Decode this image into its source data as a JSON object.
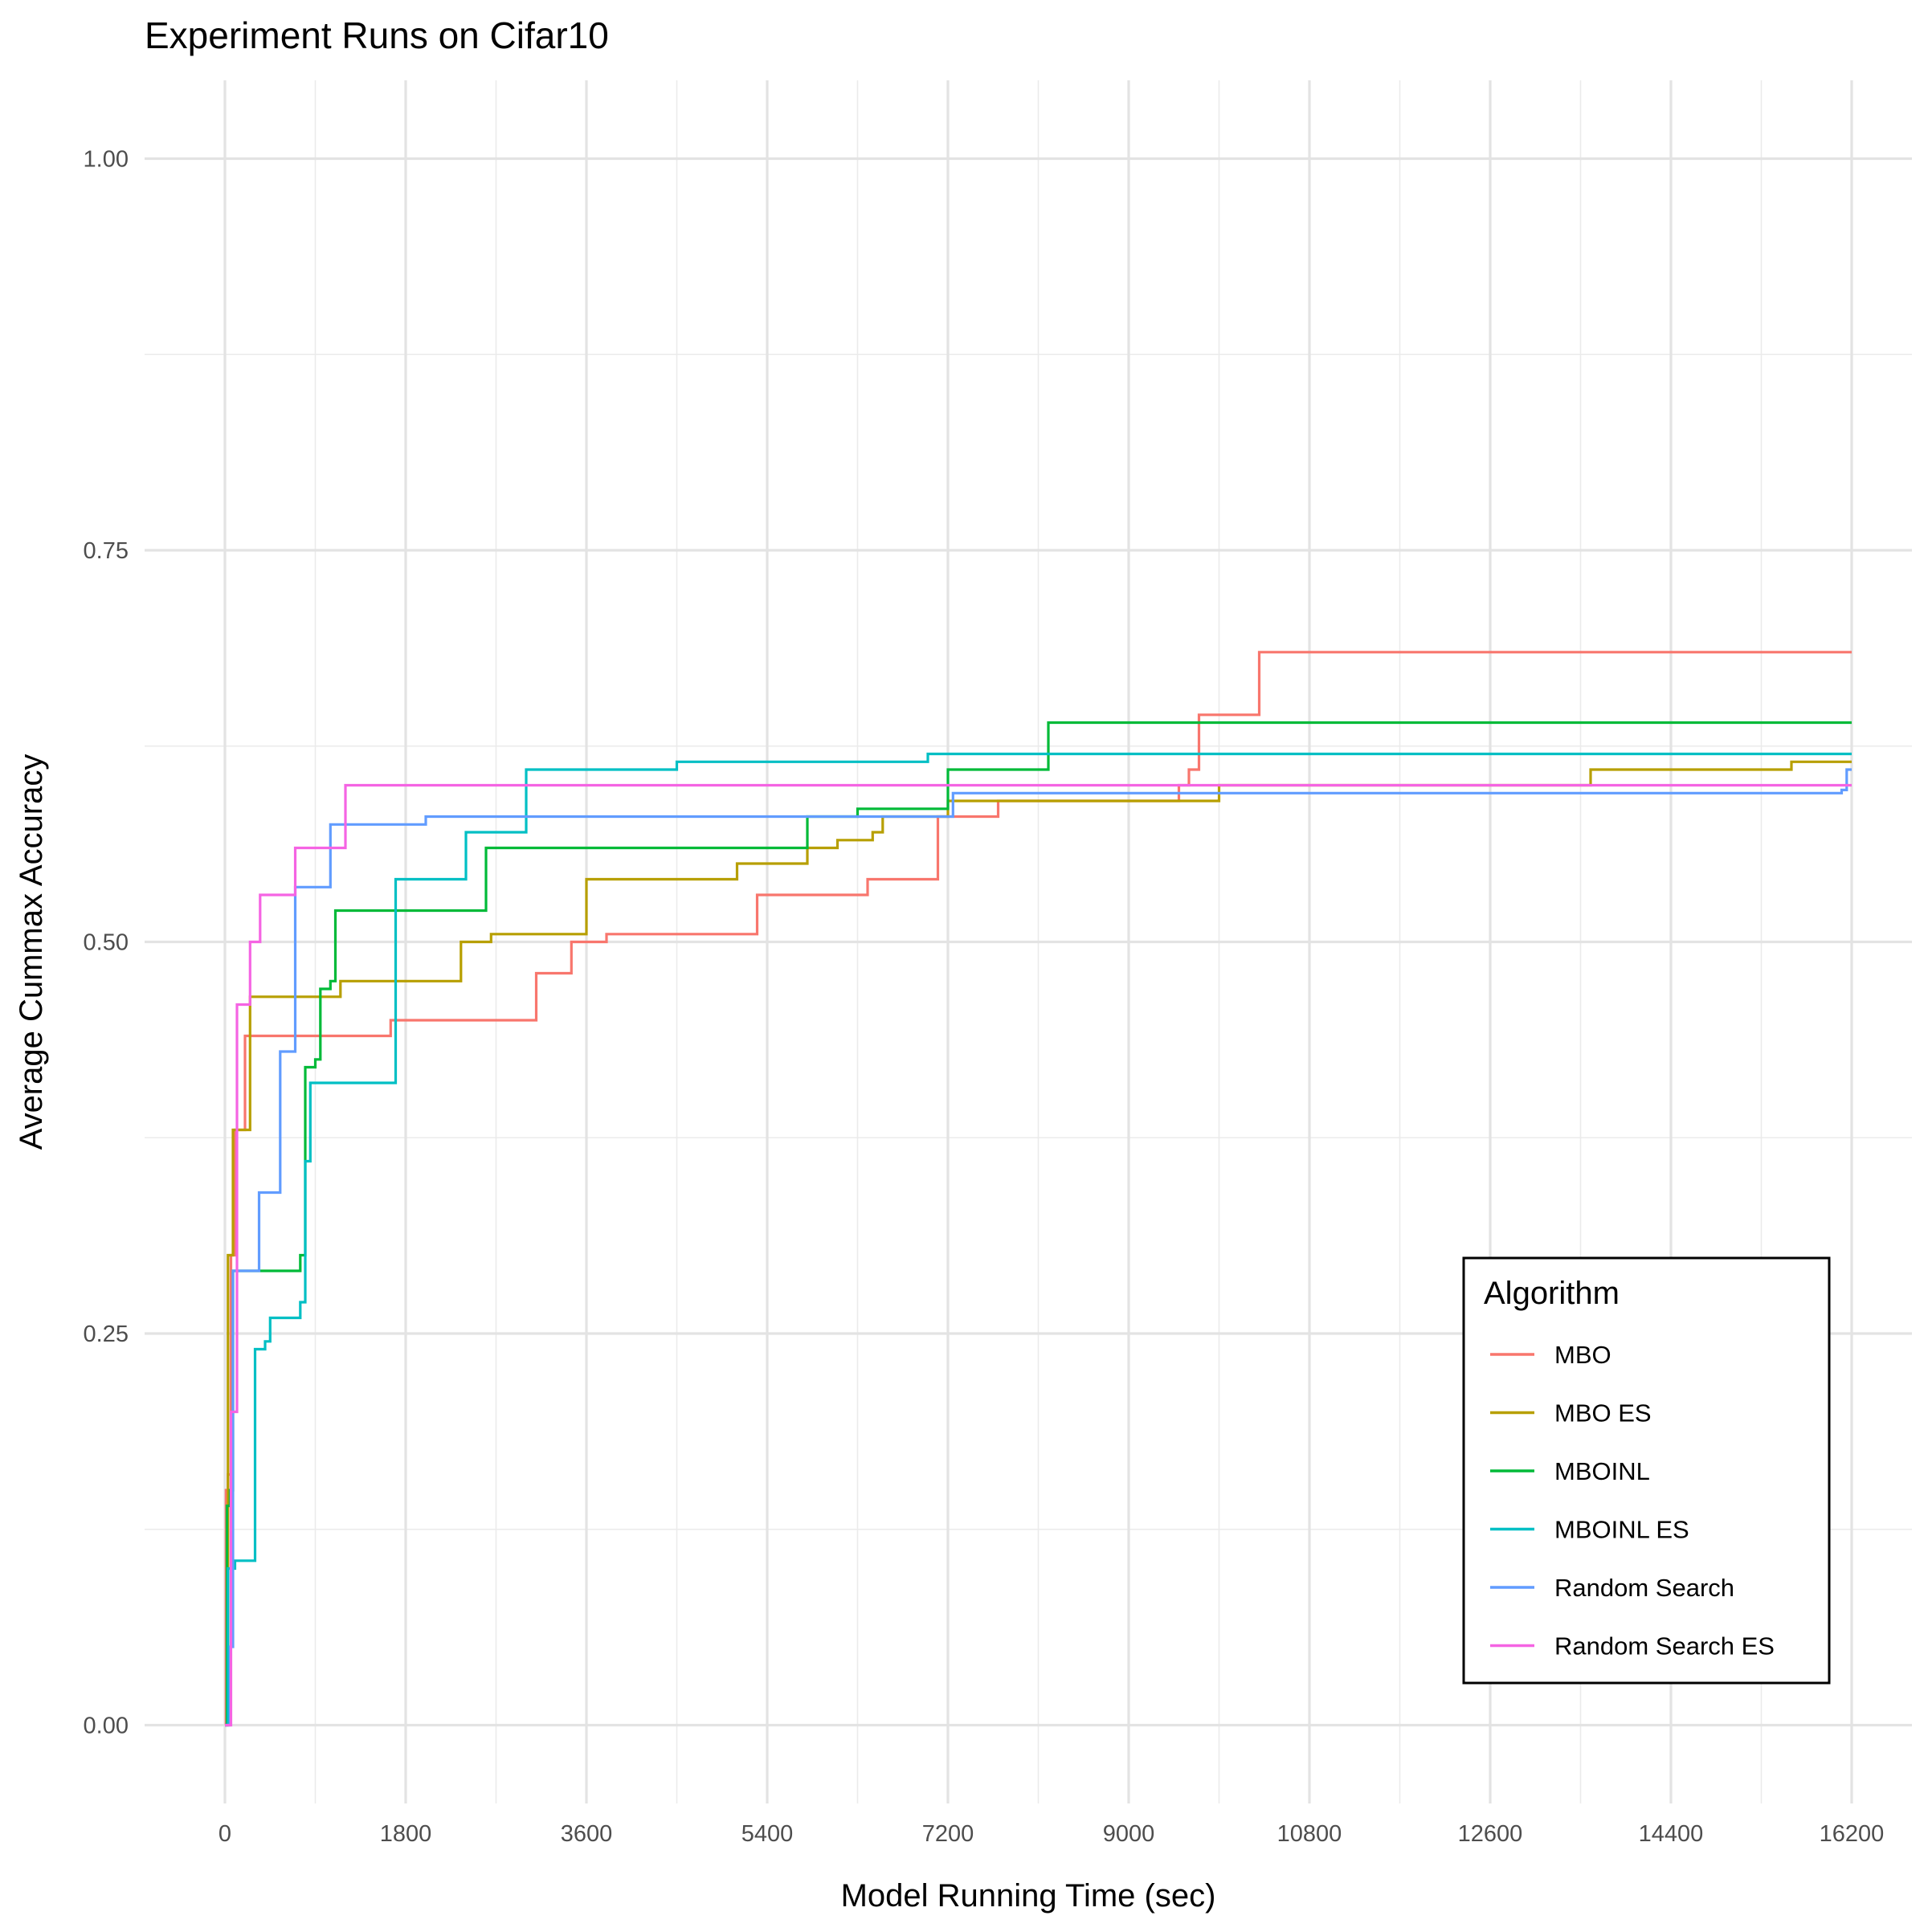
{
  "chart_data": {
    "type": "line",
    "title": "Experiment Runs on Cifar10",
    "xlabel": "Model Running Time (sec)",
    "ylabel": "Average Cummax Accuracy",
    "xlim": [
      -800,
      16800
    ],
    "ylim": [
      -0.05,
      1.05
    ],
    "x_ticks": [
      0,
      1800,
      3600,
      5400,
      7200,
      9000,
      10800,
      12600,
      14400,
      16200
    ],
    "x_tick_labels": [
      "0",
      "1800",
      "3600",
      "5400",
      "7200",
      "9000",
      "10800",
      "12600",
      "14400",
      "16200"
    ],
    "y_ticks": [
      0,
      0.25,
      0.5,
      0.75,
      1
    ],
    "y_tick_labels": [
      "0.00",
      "0.25",
      "0.50",
      "0.75",
      "1.00"
    ],
    "grid": true,
    "legend": {
      "title": "Algorithm",
      "position": "bottom-right"
    },
    "series": [
      {
        "name": "MBO",
        "color": "#F8766D",
        "points": [
          [
            0,
            0
          ],
          [
            10,
            0.15
          ],
          [
            30,
            0.16
          ],
          [
            60,
            0.3
          ],
          [
            100,
            0.38
          ],
          [
            200,
            0.44
          ],
          [
            1650,
            0.45
          ],
          [
            3100,
            0.48
          ],
          [
            3450,
            0.5
          ],
          [
            3800,
            0.505
          ],
          [
            5300,
            0.53
          ],
          [
            6400,
            0.54
          ],
          [
            7100,
            0.58
          ],
          [
            7700,
            0.59
          ],
          [
            9500,
            0.6
          ],
          [
            9600,
            0.61
          ],
          [
            9700,
            0.645
          ],
          [
            10300,
            0.685
          ],
          [
            16200,
            0.685
          ]
        ]
      },
      {
        "name": "MBO ES",
        "color": "#B79F00",
        "points": [
          [
            0,
            0
          ],
          [
            30,
            0.3
          ],
          [
            80,
            0.38
          ],
          [
            250,
            0.465
          ],
          [
            1150,
            0.475
          ],
          [
            2350,
            0.5
          ],
          [
            2650,
            0.505
          ],
          [
            3600,
            0.54
          ],
          [
            5100,
            0.55
          ],
          [
            5800,
            0.56
          ],
          [
            6100,
            0.565
          ],
          [
            6450,
            0.57
          ],
          [
            6550,
            0.58
          ],
          [
            7200,
            0.59
          ],
          [
            9900,
            0.6
          ],
          [
            13600,
            0.61
          ],
          [
            13700,
            0.61
          ],
          [
            15600,
            0.615
          ],
          [
            16200,
            0.615
          ]
        ]
      },
      {
        "name": "MBOINL",
        "color": "#00BA38",
        "points": [
          [
            0,
            0
          ],
          [
            20,
            0.14
          ],
          [
            50,
            0.15
          ],
          [
            80,
            0.29
          ],
          [
            750,
            0.3
          ],
          [
            800,
            0.42
          ],
          [
            900,
            0.425
          ],
          [
            950,
            0.47
          ],
          [
            1050,
            0.475
          ],
          [
            1100,
            0.52
          ],
          [
            2600,
            0.56
          ],
          [
            5800,
            0.58
          ],
          [
            6300,
            0.585
          ],
          [
            7200,
            0.61
          ],
          [
            8100,
            0.61
          ],
          [
            8200,
            0.64
          ],
          [
            16200,
            0.64
          ]
        ]
      },
      {
        "name": "MBOINL ES",
        "color": "#00BFC4",
        "points": [
          [
            0,
            0
          ],
          [
            30,
            0.1
          ],
          [
            100,
            0.105
          ],
          [
            300,
            0.24
          ],
          [
            400,
            0.245
          ],
          [
            450,
            0.26
          ],
          [
            750,
            0.27
          ],
          [
            800,
            0.36
          ],
          [
            850,
            0.41
          ],
          [
            1700,
            0.54
          ],
          [
            2400,
            0.57
          ],
          [
            3000,
            0.61
          ],
          [
            4500,
            0.615
          ],
          [
            7000,
            0.62
          ],
          [
            16200,
            0.62
          ]
        ]
      },
      {
        "name": "Random Search",
        "color": "#619CFF",
        "points": [
          [
            0,
            0
          ],
          [
            50,
            0.05
          ],
          [
            80,
            0.29
          ],
          [
            340,
            0.34
          ],
          [
            550,
            0.43
          ],
          [
            700,
            0.535
          ],
          [
            1050,
            0.575
          ],
          [
            2000,
            0.58
          ],
          [
            7200,
            0.58
          ],
          [
            7250,
            0.595
          ],
          [
            16100,
            0.597
          ],
          [
            16150,
            0.61
          ],
          [
            16200,
            0.61
          ]
        ]
      },
      {
        "name": "Random Search ES",
        "color": "#F564E3",
        "points": [
          [
            0,
            0
          ],
          [
            60,
            0.2
          ],
          [
            120,
            0.46
          ],
          [
            250,
            0.5
          ],
          [
            350,
            0.53
          ],
          [
            700,
            0.56
          ],
          [
            1200,
            0.6
          ],
          [
            7200,
            0.6
          ],
          [
            16200,
            0.6
          ]
        ]
      }
    ]
  }
}
